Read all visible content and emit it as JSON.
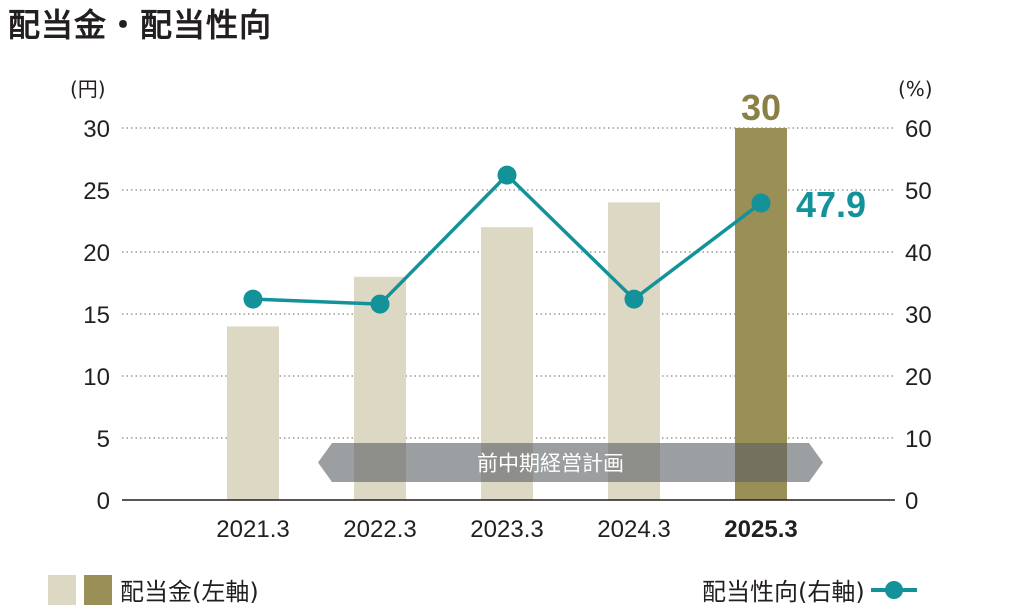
{
  "title": "配当金・配当性向",
  "chart_data": {
    "type": "bar+line",
    "categories": [
      "2021.3",
      "2022.3",
      "2023.3",
      "2024.3",
      "2025.3"
    ],
    "highlight_category": "2025.3",
    "series": [
      {
        "name": "配当金(左軸)",
        "type": "bar",
        "axis": "left",
        "values": [
          14,
          18,
          22,
          24,
          30
        ],
        "colors": [
          "#ddd8c3",
          "#ddd8c3",
          "#ddd8c3",
          "#ddd8c3",
          "#9a8f57"
        ]
      },
      {
        "name": "配当性向(右軸)",
        "type": "line",
        "axis": "right",
        "values": [
          32.4,
          31.6,
          52.4,
          32.4,
          47.9
        ],
        "color": "#14929a"
      }
    ],
    "left_axis": {
      "unit": "(円)",
      "ylim": [
        0,
        30
      ],
      "ticks": [
        0,
        5,
        10,
        15,
        20,
        25,
        30
      ]
    },
    "right_axis": {
      "unit": "(%)",
      "ylim": [
        0,
        60
      ],
      "ticks": [
        0,
        10,
        20,
        30,
        40,
        50,
        60
      ]
    },
    "data_labels": {
      "bar_last": "30",
      "line_last": "47.9"
    },
    "annotation": {
      "text": "前中期経営計画",
      "from": "2022.3",
      "to": "2025.3"
    },
    "grid": "dotted horizontal",
    "legend": [
      "配当金(左軸)",
      "配当性向(右軸)"
    ]
  }
}
